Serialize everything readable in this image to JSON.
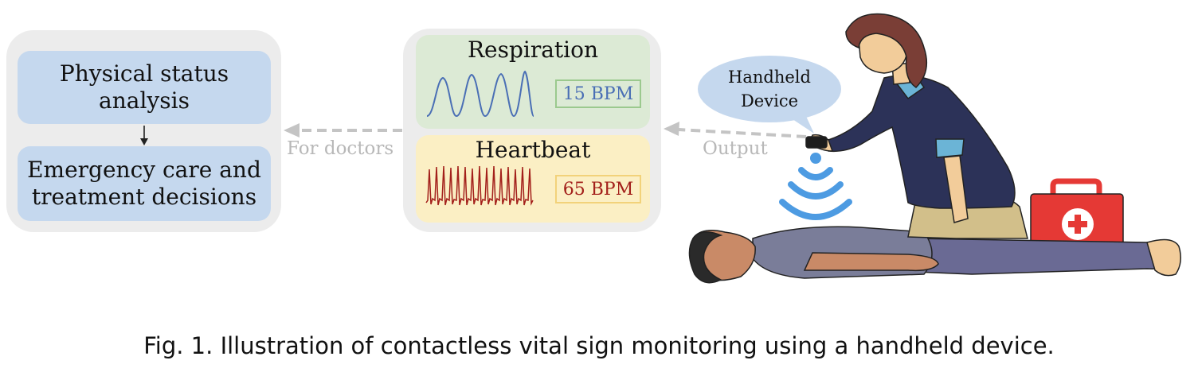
{
  "analysis_panel": {
    "top_box": "Physical status analysis",
    "bottom_box": "Emergency care and treatment decisions"
  },
  "arrows": {
    "to_doctors_label": "For doctors",
    "output_label": "Output"
  },
  "vitals": {
    "respiration": {
      "title": "Respiration",
      "value": "15 BPM",
      "color": "#4a6fb5",
      "border": "#9bc98e"
    },
    "heartbeat": {
      "title": "Heartbeat",
      "value": "65 BPM",
      "color": "#a3201b",
      "border": "#f2d27a"
    }
  },
  "device_bubble": "Handheld Device",
  "caption": "Fig. 1.  Illustration of contactless vital sign monitoring using a handheld device."
}
